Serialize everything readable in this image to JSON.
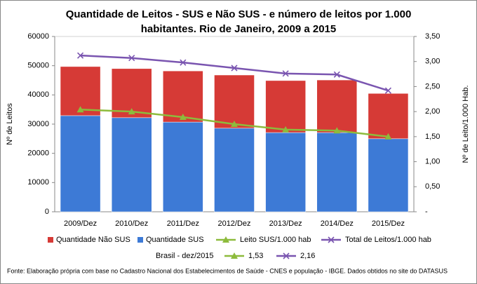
{
  "chart_data": {
    "type": "bar-line",
    "title_lines": [
      "Quantidade de Leitos - SUS e Não SUS - e número de leitos por 1.000",
      "habitantes. Rio de Janeiro, 2009 a 2015"
    ],
    "ylabel": "Nº de Leitos",
    "y2label": "Nº de Leito/1.000 Hab.",
    "categories": [
      "2009/Dez",
      "2010/Dez",
      "2011/Dez",
      "2012/Dez",
      "2013/Dez",
      "2014/Dez",
      "2015/Dez"
    ],
    "series": [
      {
        "name": "Quantidade Não SUS",
        "type": "bar",
        "color": "#d63a36",
        "values": [
          16800,
          16800,
          17500,
          18200,
          17800,
          18000,
          15500
        ]
      },
      {
        "name": "Quantidade SUS",
        "type": "bar",
        "color": "#3d7ad6",
        "values": [
          32900,
          32200,
          30700,
          28600,
          27100,
          27100,
          25000
        ]
      },
      {
        "name": "Leito SUS/1.000 hab",
        "type": "line",
        "axis": "y2",
        "marker": "triangle",
        "color": "#8dbb3c",
        "values": [
          2.04,
          2.0,
          1.89,
          1.75,
          1.64,
          1.62,
          1.5
        ]
      },
      {
        "name": "Total de Leitos/1.000 hab",
        "type": "line",
        "axis": "y2",
        "marker": "x",
        "color": "#7a55b0",
        "values": [
          3.12,
          3.07,
          2.98,
          2.87,
          2.76,
          2.74,
          2.42
        ]
      }
    ],
    "ylim": [
      0,
      60000
    ],
    "yticks": [
      0,
      10000,
      20000,
      30000,
      40000,
      50000,
      60000
    ],
    "y2lim": [
      0,
      3.5
    ],
    "y2ticks": [
      {
        "value": 0,
        "label": "-"
      },
      {
        "value": 0.5,
        "label": "0,50"
      },
      {
        "value": 1,
        "label": "1,00"
      },
      {
        "value": 1.5,
        "label": "1,50"
      },
      {
        "value": 2,
        "label": "2,00"
      },
      {
        "value": 2.5,
        "label": "2,50"
      },
      {
        "value": 3,
        "label": "3,00"
      },
      {
        "value": 3.5,
        "label": "3,50"
      }
    ],
    "reference": {
      "label": "Brasil - dez/2015",
      "values": [
        1.53,
        2.16
      ],
      "value_labels": [
        "1,53",
        "2,16"
      ]
    },
    "source": "Fonte: Elaboração própria com base no  Cadastro Nacional dos Estabelecimentos de Saúde - CNES e população - IBGE. Dados obtidos no site do DATASUS"
  }
}
